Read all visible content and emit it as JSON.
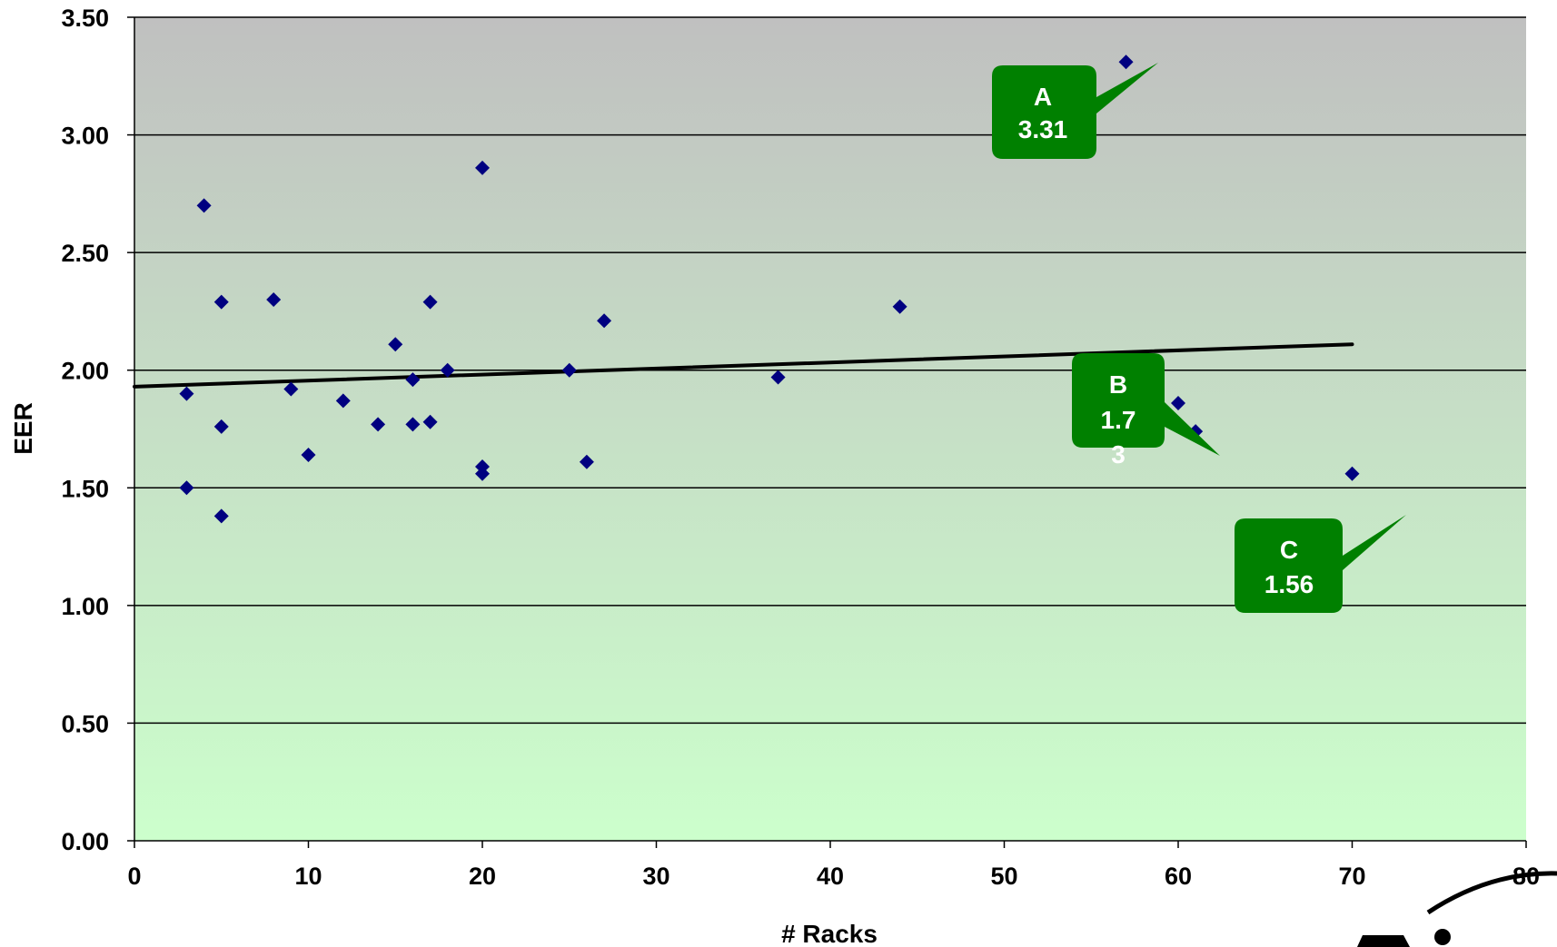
{
  "chart_data": {
    "type": "scatter",
    "xlabel": "# Racks",
    "ylabel": "EER",
    "xlim": [
      0,
      80
    ],
    "ylim": [
      0,
      3.5
    ],
    "x_ticks": [
      "0",
      "10",
      "20",
      "30",
      "40",
      "50",
      "60",
      "70",
      "80"
    ],
    "y_ticks": [
      "0.00",
      "0.50",
      "1.00",
      "1.50",
      "2.00",
      "2.50",
      "3.00",
      "3.50"
    ],
    "grid": "horizontal",
    "background": {
      "top_color": "#c0c0c0",
      "bottom_color": "#ccffcc"
    },
    "marker_color": "#000080",
    "points": [
      {
        "x": 3,
        "y": 1.9
      },
      {
        "x": 3,
        "y": 1.5
      },
      {
        "x": 4,
        "y": 2.7
      },
      {
        "x": 5,
        "y": 2.29
      },
      {
        "x": 5,
        "y": 1.76
      },
      {
        "x": 5,
        "y": 1.38
      },
      {
        "x": 8,
        "y": 2.3
      },
      {
        "x": 9,
        "y": 1.92
      },
      {
        "x": 10,
        "y": 1.64
      },
      {
        "x": 12,
        "y": 1.87
      },
      {
        "x": 14,
        "y": 1.77
      },
      {
        "x": 15,
        "y": 2.11
      },
      {
        "x": 16,
        "y": 1.96
      },
      {
        "x": 16,
        "y": 1.77
      },
      {
        "x": 17,
        "y": 2.29
      },
      {
        "x": 17,
        "y": 1.78
      },
      {
        "x": 18,
        "y": 2.0
      },
      {
        "x": 20,
        "y": 2.86
      },
      {
        "x": 20,
        "y": 1.59
      },
      {
        "x": 20,
        "y": 1.56
      },
      {
        "x": 25,
        "y": 2.0
      },
      {
        "x": 26,
        "y": 1.61
      },
      {
        "x": 27,
        "y": 2.21
      },
      {
        "x": 37,
        "y": 1.97
      },
      {
        "x": 44,
        "y": 2.27
      },
      {
        "x": 57,
        "y": 3.31
      },
      {
        "x": 60,
        "y": 1.86
      },
      {
        "x": 61,
        "y": 1.74
      },
      {
        "x": 70,
        "y": 1.56
      }
    ],
    "trendline": {
      "x1": 0,
      "y1": 1.93,
      "x2": 70,
      "y2": 2.11,
      "color": "#000000"
    },
    "callouts": [
      {
        "label": "A",
        "value": "3.31",
        "color": "#008000"
      },
      {
        "label": "B",
        "value": "1.7",
        "value_overflow": "3",
        "color": "#008000"
      },
      {
        "label": "C",
        "value": "1.56",
        "color": "#008000"
      }
    ]
  }
}
